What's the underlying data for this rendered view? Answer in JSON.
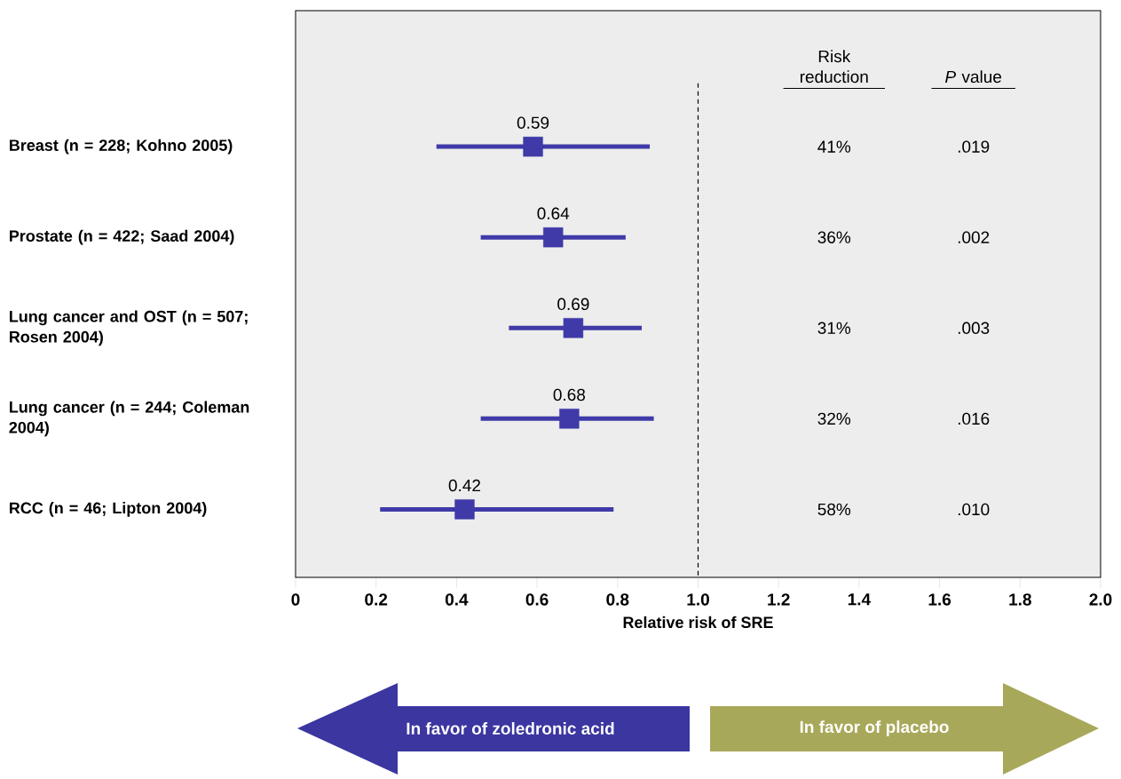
{
  "chart_data": {
    "type": "scatter",
    "orientation": "horizontal",
    "xlabel": "Relative risk of SRE",
    "categories": [
      "Breast (n = 228; Kohno 2005)",
      "Prostate (n = 422; Saad 2004)",
      "Lung cancer and OST (n = 507; Rosen 2004)",
      "Lung cancer (n = 244; Coleman 2004)",
      "RCC (n = 46; Lipton 2004)"
    ],
    "values": [
      0.59,
      0.64,
      0.69,
      0.68,
      0.42
    ],
    "errors": [
      [
        0.35,
        0.88
      ],
      [
        0.46,
        0.82
      ],
      [
        0.53,
        0.86
      ],
      [
        0.46,
        0.89
      ],
      [
        0.21,
        0.79
      ]
    ],
    "color": "#3f3aa8",
    "marker": "square",
    "data_labels": true,
    "xlim": [
      0,
      2
    ],
    "xticks": [
      0,
      0.2,
      0.4,
      0.6,
      0.8,
      {
        "value": 1,
        "label": "1.0"
      },
      1.2,
      1.4,
      1.6,
      1.8,
      {
        "value": 2,
        "label": "2.0"
      }
    ],
    "ref_lines": [
      {
        "axis": "x",
        "value": 1,
        "line_style": "dashed",
        "color": "#000000"
      }
    ],
    "annotations": [
      "Risk reduction",
      "*P* value",
      "41%",
      ".019",
      "36%",
      ".002",
      "31%",
      ".003",
      "32%",
      ".016",
      "58%",
      ".010",
      "In favor of zoledronic acid",
      "In favor of placebo"
    ]
  }
}
